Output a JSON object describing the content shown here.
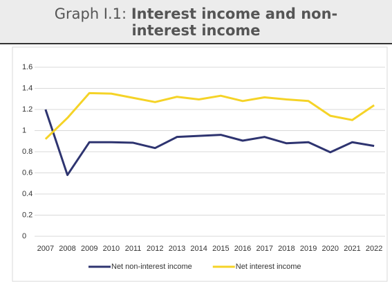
{
  "chart_data": {
    "type": "line",
    "title_label": "Graph I.1:",
    "title": "Interest income and non-interest income",
    "categories": [
      "2007",
      "2008",
      "2009",
      "2010",
      "2011",
      "2012",
      "2013",
      "2014",
      "2015",
      "2016",
      "2017",
      "2018",
      "2019",
      "2020",
      "2021",
      "2022"
    ],
    "series": [
      {
        "name": "Net non-interest income",
        "color": "#2e3470",
        "values": [
          1.2,
          0.58,
          0.89,
          0.89,
          0.885,
          0.835,
          0.94,
          0.95,
          0.96,
          0.905,
          0.94,
          0.88,
          0.89,
          0.795,
          0.89,
          0.855
        ]
      },
      {
        "name": "Net interest income",
        "color": "#f5d327",
        "values": [
          0.92,
          1.12,
          1.355,
          1.35,
          1.31,
          1.27,
          1.32,
          1.295,
          1.33,
          1.28,
          1.315,
          1.295,
          1.28,
          1.14,
          1.1,
          1.24
        ]
      }
    ],
    "ylim": [
      0,
      1.6
    ],
    "yticks": [
      0,
      0.2,
      0.4,
      0.6,
      0.8,
      1,
      1.2,
      1.4,
      1.6
    ],
    "grid": true,
    "legend": "bottom"
  }
}
